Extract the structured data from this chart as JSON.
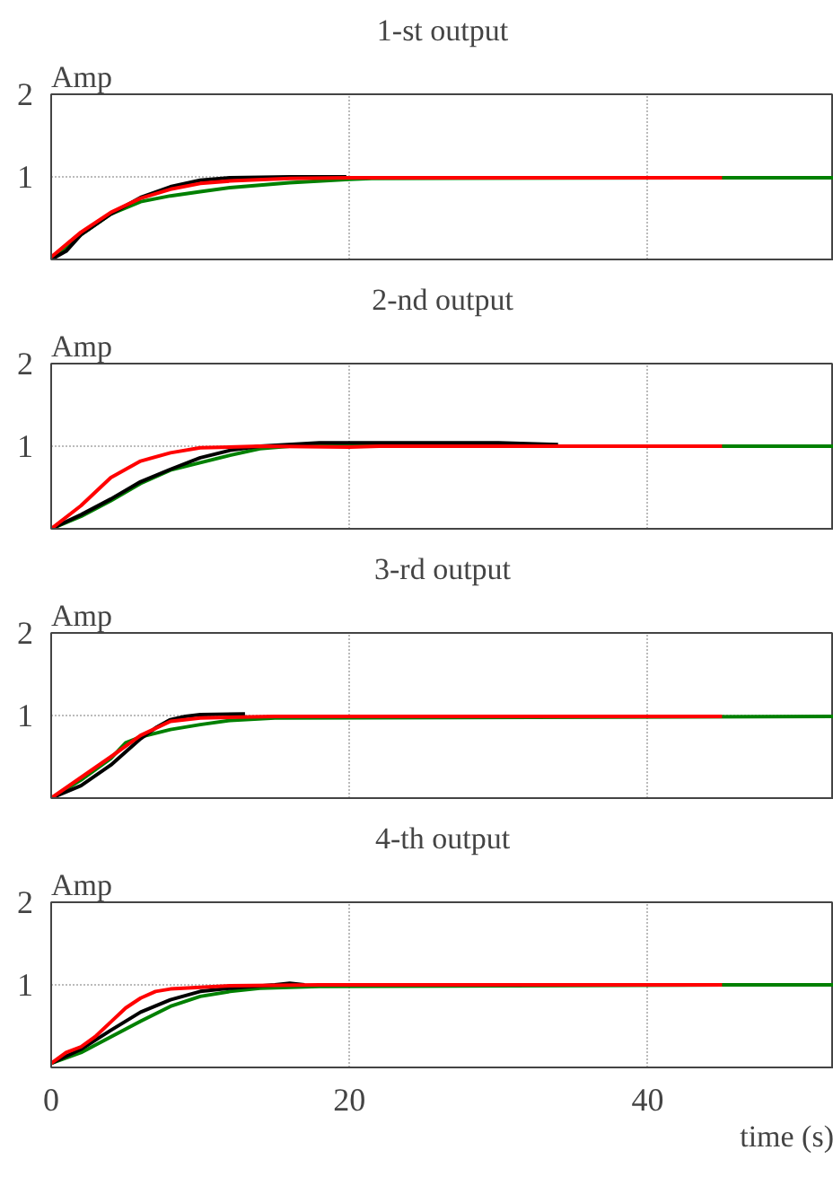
{
  "chart_data": [
    {
      "type": "line",
      "title": "1-st output",
      "ylabel": "Amp",
      "xlim": [
        0,
        52.5
      ],
      "ylim": [
        0,
        2
      ],
      "xticks": [
        0,
        20,
        40
      ],
      "yticks": [
        1,
        2
      ],
      "grid": true,
      "tick_labels": "y",
      "series": [
        {
          "color": "#008000",
          "x": [
            0,
            2,
            4,
            6,
            8,
            10,
            12,
            16,
            20,
            21.5,
            45,
            52.5
          ],
          "values": [
            0,
            0.3,
            0.55,
            0.7,
            0.77,
            0.82,
            0.87,
            0.93,
            0.97,
            0.98,
            0.99,
            0.99
          ]
        },
        {
          "color": "#000000",
          "x": [
            0,
            1,
            2,
            4,
            6,
            8,
            10,
            12,
            16,
            19.8
          ],
          "values": [
            0,
            0.1,
            0.3,
            0.55,
            0.75,
            0.88,
            0.96,
            0.99,
            1.0,
            1.0
          ]
        },
        {
          "color": "#ff0000",
          "x": [
            0,
            2,
            4,
            6,
            8,
            10,
            12,
            16,
            20,
            45
          ],
          "values": [
            0.03,
            0.33,
            0.57,
            0.74,
            0.85,
            0.92,
            0.95,
            0.98,
            0.99,
            0.99
          ]
        }
      ]
    },
    {
      "type": "line",
      "title": "2-nd output",
      "ylabel": "Amp",
      "xlim": [
        0,
        52.5
      ],
      "ylim": [
        0,
        2
      ],
      "xticks": [
        0,
        20,
        40
      ],
      "yticks": [
        1,
        2
      ],
      "grid": true,
      "tick_labels": "y",
      "series": [
        {
          "color": "#008000",
          "x": [
            0,
            2,
            4,
            6,
            8,
            10,
            12,
            14,
            16,
            52.5
          ],
          "values": [
            0,
            0.15,
            0.34,
            0.55,
            0.71,
            0.8,
            0.89,
            0.97,
            1.0,
            1.0
          ]
        },
        {
          "color": "#000000",
          "x": [
            0,
            2,
            4,
            6,
            8,
            10,
            12,
            14,
            18,
            30,
            34
          ],
          "values": [
            0,
            0.17,
            0.36,
            0.57,
            0.72,
            0.86,
            0.95,
            1.0,
            1.04,
            1.04,
            1.02
          ]
        },
        {
          "color": "#ff0000",
          "x": [
            0,
            2,
            4,
            6,
            8,
            10,
            14,
            20,
            22,
            45
          ],
          "values": [
            0,
            0.28,
            0.62,
            0.82,
            0.92,
            0.98,
            1.0,
            0.99,
            1.0,
            1.0
          ]
        }
      ]
    },
    {
      "type": "line",
      "title": "3-rd output",
      "ylabel": "Amp",
      "xlim": [
        0,
        52.5
      ],
      "ylim": [
        0,
        2
      ],
      "xticks": [
        0,
        20,
        40
      ],
      "yticks": [
        1,
        2
      ],
      "grid": true,
      "tick_labels": "y",
      "series": [
        {
          "color": "#008000",
          "x": [
            0,
            2,
            4,
            5,
            6,
            8,
            10,
            12,
            15,
            52.5
          ],
          "values": [
            0,
            0.22,
            0.48,
            0.67,
            0.74,
            0.83,
            0.89,
            0.94,
            0.97,
            0.99
          ]
        },
        {
          "color": "#000000",
          "x": [
            0,
            2,
            4,
            6,
            7,
            8,
            9,
            10,
            13
          ],
          "values": [
            0,
            0.15,
            0.4,
            0.72,
            0.85,
            0.95,
            0.99,
            1.01,
            1.02
          ]
        },
        {
          "color": "#ff0000",
          "x": [
            0,
            2,
            4,
            6,
            8,
            10,
            15,
            45
          ],
          "values": [
            0,
            0.25,
            0.5,
            0.76,
            0.93,
            0.97,
            0.99,
            0.99
          ]
        }
      ]
    },
    {
      "type": "line",
      "title": "4-th output",
      "ylabel": "Amp",
      "xlabel": "time (s)",
      "xlim": [
        0,
        52.5
      ],
      "ylim": [
        0,
        2
      ],
      "xticks": [
        0,
        20,
        40
      ],
      "yticks": [
        1,
        2
      ],
      "grid": true,
      "series": [
        {
          "color": "#008000",
          "x": [
            0,
            2,
            4,
            6,
            8,
            10,
            12,
            14,
            18,
            18.3,
            45,
            52.5
          ],
          "values": [
            0.05,
            0.18,
            0.37,
            0.56,
            0.74,
            0.86,
            0.92,
            0.96,
            0.98,
            0.98,
            1.0,
            1.0
          ]
        },
        {
          "color": "#000000",
          "x": [
            0,
            2,
            4,
            6,
            8,
            10,
            12,
            15,
            16,
            17
          ],
          "values": [
            0.05,
            0.22,
            0.45,
            0.67,
            0.82,
            0.92,
            0.96,
            1.0,
            1.02,
            1.0
          ]
        },
        {
          "color": "#ff0000",
          "x": [
            0,
            1,
            2,
            3,
            4,
            5,
            6,
            7,
            8,
            10,
            12,
            18,
            45
          ],
          "values": [
            0.05,
            0.18,
            0.25,
            0.38,
            0.55,
            0.72,
            0.84,
            0.92,
            0.95,
            0.97,
            0.99,
            1.0,
            1.0
          ]
        }
      ]
    }
  ]
}
